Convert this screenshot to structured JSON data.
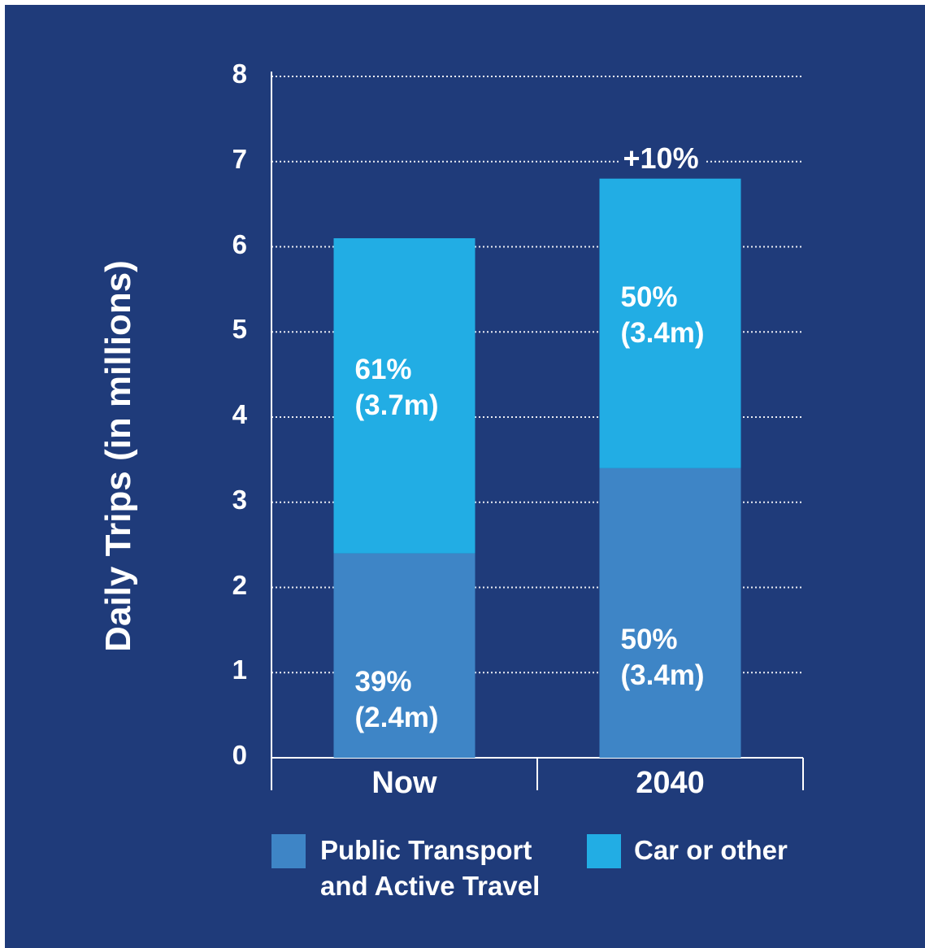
{
  "colors": {
    "background": "#1f3b7a",
    "public_transport": "#3e85c6",
    "car_or_other": "#22ade4",
    "text": "#ffffff"
  },
  "chart_data": {
    "type": "bar",
    "stacked": true,
    "ylabel": "Daily Trips (in millions)",
    "xlabel": "",
    "ylim": [
      0,
      8
    ],
    "yticks": [
      "0",
      "1",
      "2",
      "3",
      "4",
      "5",
      "6",
      "7",
      "8"
    ],
    "grid": "dotted horizontal",
    "categories": [
      "Now",
      "2040"
    ],
    "series": [
      {
        "name": "Public Transport and Active Travel",
        "values": [
          2.4,
          3.4
        ],
        "labels": [
          "39%\n(2.4m)",
          "50%\n(3.4m)"
        ]
      },
      {
        "name": "Car or other",
        "values": [
          3.7,
          3.4
        ],
        "labels": [
          "61%\n(3.7m)",
          "50%\n(3.4m)"
        ]
      }
    ],
    "annotations": [
      {
        "category": "2040",
        "text": "+10%"
      }
    ],
    "legend": {
      "position": "bottom",
      "items": [
        "Public Transport\nand Active Travel",
        "Car or other"
      ]
    }
  }
}
